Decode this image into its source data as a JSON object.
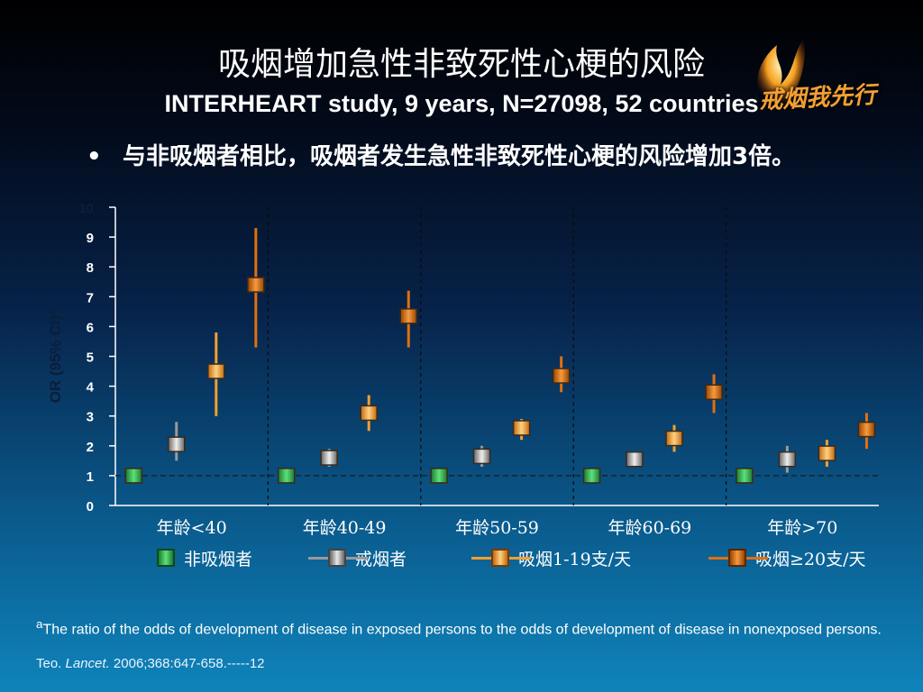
{
  "title_cn": "吸烟增加急性非致死性心梗的风险",
  "title_en": "INTERHEART study, 9 years, N=27098, 52 countries",
  "bullet": {
    "symbol": "•",
    "text": "与非吸烟者相比，吸烟者发生急性非致死性心梗的风险增加3倍。"
  },
  "logo_text": "戒烟我先行",
  "chart_data": {
    "type": "scatter",
    "ylabel": "OR (95% CI)ª",
    "ylim": [
      0,
      10
    ],
    "yticks": [
      "0",
      "1",
      "2",
      "3",
      "4",
      "5",
      "6",
      "7",
      "8",
      "9",
      "10"
    ],
    "reference_line": 1,
    "categories": [
      "年龄<40",
      "年龄40-49",
      "年龄50-59",
      "年龄60-69",
      "年龄>70"
    ],
    "series": [
      {
        "name": "非吸烟者",
        "color": "#2aa84a",
        "values": [
          1,
          1,
          1,
          1,
          1
        ],
        "lower": [
          1,
          1,
          1,
          1,
          1
        ],
        "upper": [
          1,
          1,
          1,
          1,
          1
        ]
      },
      {
        "name": "戒烟者",
        "color": "#9a9a9a",
        "values": [
          2.05,
          1.6,
          1.65,
          1.55,
          1.55
        ],
        "lower": [
          1.5,
          1.3,
          1.3,
          1.3,
          1.1
        ],
        "upper": [
          2.8,
          1.9,
          2.0,
          1.8,
          2.0
        ]
      },
      {
        "name": "吸烟1-19支/天",
        "color": "#f0a030",
        "values": [
          4.5,
          3.1,
          2.6,
          2.25,
          1.75
        ],
        "lower": [
          3.0,
          2.5,
          2.2,
          1.8,
          1.3
        ],
        "upper": [
          5.8,
          3.7,
          2.9,
          2.7,
          2.2
        ]
      },
      {
        "name": "吸烟≥20支/天",
        "color": "#e07010",
        "values": [
          7.4,
          6.35,
          4.35,
          3.8,
          2.55
        ],
        "lower": [
          5.3,
          5.3,
          3.8,
          3.1,
          1.9
        ],
        "upper": [
          9.3,
          7.2,
          5.0,
          4.4,
          3.1
        ]
      }
    ],
    "grid": false
  },
  "footnote": {
    "sup": "a",
    "text": "The ratio of the odds of development of disease in exposed persons to the odds of development of disease in nonexposed persons."
  },
  "reference": {
    "author": "Teo. ",
    "journal": "Lancet.",
    "rest": " 2006;368:647-658.-----12"
  }
}
